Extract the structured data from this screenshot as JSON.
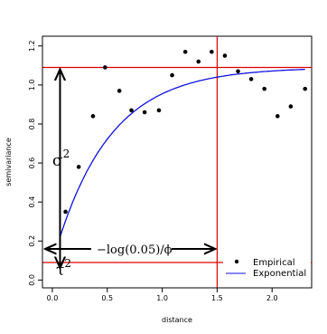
{
  "chart_data": {
    "type": "scatter",
    "title": "",
    "xlabel": "distance",
    "ylabel": "semivariance",
    "xlim": [
      -0.09,
      2.36
    ],
    "ylim": [
      -0.04,
      1.25
    ],
    "xticks": [
      0.0,
      0.5,
      1.0,
      1.5,
      2.0
    ],
    "xtick_labels": [
      "0.0",
      "0.5",
      "1.0",
      "1.5",
      "2.0"
    ],
    "yticks": [
      0.0,
      0.2,
      0.4,
      0.6,
      0.8,
      1.0,
      1.2
    ],
    "ytick_labels": [
      "0.0",
      "0.2",
      "0.4",
      "0.6",
      "0.8",
      "1.0",
      "1.2"
    ],
    "grid": false,
    "legend_position": "bottom-right",
    "series": [
      {
        "name": "Empirical",
        "kind": "points",
        "color": "#000000",
        "x": [
          0.12,
          0.24,
          0.37,
          0.48,
          0.61,
          0.72,
          0.84,
          0.97,
          1.09,
          1.21,
          1.33,
          1.45,
          1.57,
          1.69,
          1.81,
          1.93,
          2.05,
          2.17,
          2.3
        ],
        "y": [
          0.35,
          0.58,
          0.84,
          1.09,
          0.97,
          0.87,
          0.86,
          0.87,
          1.05,
          1.17,
          1.12,
          1.17,
          1.15,
          1.07,
          1.03,
          0.98,
          0.84,
          0.89,
          0.98
        ]
      },
      {
        "name": "Exponential",
        "kind": "line",
        "color": "#1010e0",
        "model": {
          "nugget": 0.09,
          "sill": 1.09,
          "range_param": 0.5,
          "x_start": 0.07,
          "x_end": 2.3
        }
      }
    ],
    "hlines": [
      {
        "y": 1.09,
        "color": "#e00000"
      },
      {
        "y": 0.09,
        "color": "#e00000"
      }
    ],
    "vlines": [
      {
        "x": 1.5,
        "color": "#e00000"
      }
    ],
    "annotations": {
      "sigma": {
        "base": "σ",
        "sup": "2"
      },
      "tau": {
        "base": "τ",
        "sup": "2"
      },
      "range_formula": "−log(0.05)/ϕ"
    }
  }
}
